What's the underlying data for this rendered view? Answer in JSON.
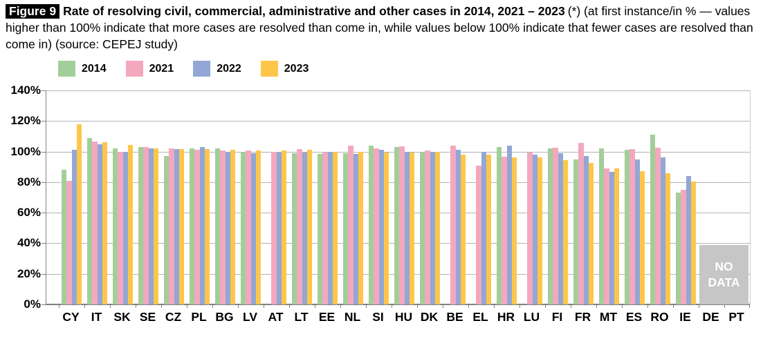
{
  "header": {
    "figure_label": "Figure 9",
    "title_bold": "Rate of resolving civil, commercial, administrative and other cases in 2014, 2021 – 2023",
    "title_rest": "(*) (at first instance/in % — values higher than 100% indicate that more cases are resolved than come in, while values below 100% indicate that fewer cases are resolved than come in) (source: CEPEJ study)"
  },
  "colors": {
    "grid": "#b3b3b3",
    "axis": "#7f7f7f",
    "no_data_box": "#c6c6c6",
    "series_2014": "#a2ce99",
    "series_2021": "#f4a8be",
    "series_2022": "#92a7d5",
    "series_2023": "#fdc64b"
  },
  "chart_data": {
    "type": "bar",
    "title": "Rate of resolving civil, commercial, administrative and other cases in 2014, 2021 – 2023",
    "xlabel": "",
    "ylabel": "",
    "ylim": [
      0,
      140
    ],
    "ytick_step": 20,
    "ytick_labels": [
      "0%",
      "20%",
      "40%",
      "60%",
      "80%",
      "100%",
      "120%",
      "140%"
    ],
    "grid": true,
    "legend_position": "top",
    "categories": [
      "CY",
      "IT",
      "SK",
      "SE",
      "CZ",
      "PL",
      "BG",
      "LV",
      "AT",
      "LT",
      "EE",
      "NL",
      "SI",
      "HU",
      "DK",
      "BE",
      "EL",
      "HR",
      "LU",
      "FI",
      "FR",
      "MT",
      "ES",
      "RO",
      "IE",
      "DE",
      "PT"
    ],
    "series": [
      {
        "name": "2014",
        "color": "#a2ce99",
        "values": [
          88,
          109,
          102,
          103,
          97,
          102,
          102,
          100,
          null,
          99,
          98.5,
          99,
          104,
          103,
          100,
          null,
          null,
          103,
          null,
          102,
          95,
          102,
          101,
          111,
          73,
          null,
          null
        ]
      },
      {
        "name": "2021",
        "color": "#f4a8be",
        "values": [
          81,
          106.5,
          100,
          103,
          102,
          101,
          100.5,
          100.5,
          100,
          101.5,
          99.5,
          104,
          102,
          103.5,
          100.5,
          104,
          91,
          96.5,
          99.5,
          102.5,
          105.5,
          89,
          101.5,
          102.5,
          75,
          null,
          null
        ]
      },
      {
        "name": "2022",
        "color": "#92a7d5",
        "values": [
          101,
          105,
          100,
          102,
          101.5,
          103,
          100,
          99,
          99.5,
          99.5,
          100,
          98.5,
          101,
          100,
          100,
          101,
          100,
          104,
          98,
          99,
          97,
          86.5,
          95,
          96,
          84,
          null,
          null
        ]
      },
      {
        "name": "2023",
        "color": "#fdc64b",
        "values": [
          118,
          106,
          104.5,
          102,
          101.5,
          101.5,
          101,
          100.5,
          100.5,
          101,
          100,
          100,
          99.5,
          99.5,
          100,
          98,
          98,
          96,
          96,
          94.5,
          92.5,
          89,
          87,
          86,
          80.5,
          null,
          null
        ]
      }
    ],
    "no_data": {
      "label": "NO DATA",
      "lines": [
        "NO",
        "DATA"
      ],
      "categories": [
        "DE",
        "PT"
      ],
      "start_index": 25,
      "span": 2,
      "top_value": 39
    }
  }
}
